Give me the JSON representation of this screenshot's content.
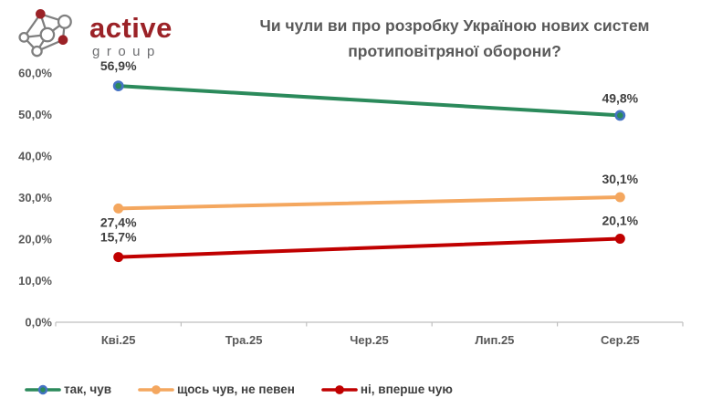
{
  "logo": {
    "brand": "active",
    "sub": "group",
    "icon": "network-icon",
    "brand_color": "#9B2227",
    "sub_color": "#6D6E71"
  },
  "title": {
    "line1": "Чи чули ви про розробку Україною нових систем",
    "line2": "протиповітряної оборони?"
  },
  "chart_data": {
    "type": "line",
    "title": "Чи чули ви про розробку Україною нових систем протиповітряної оборони?",
    "categories": [
      "Кві.25",
      "Тра.25",
      "Чер.25",
      "Лип.25",
      "Сер.25"
    ],
    "series": [
      {
        "name": "так, чув",
        "color": "#2B8A5B",
        "marker_stroke": "#4472C4",
        "values": [
          56.9,
          null,
          null,
          null,
          49.8
        ],
        "labels": [
          "56,9%",
          null,
          null,
          null,
          "49,8%"
        ]
      },
      {
        "name": "щось чув, не певен",
        "color": "#F4A75F",
        "marker_stroke": "#F4A75F",
        "values": [
          27.4,
          null,
          null,
          null,
          30.1
        ],
        "labels": [
          "27,4%",
          null,
          null,
          null,
          "30,1%"
        ]
      },
      {
        "name": "ні, вперше чую",
        "color": "#C00000",
        "marker_stroke": "#C00000",
        "values": [
          15.7,
          null,
          null,
          null,
          20.1
        ],
        "labels": [
          "15,7%",
          null,
          null,
          null,
          "20,1%"
        ]
      }
    ],
    "y_ticks": [
      "0,0%",
      "10,0%",
      "20,0%",
      "30,0%",
      "40,0%",
      "50,0%",
      "60,0%"
    ],
    "ylim": [
      0,
      60
    ],
    "y_step": 10,
    "xlabel": "",
    "ylabel": "",
    "grid": false,
    "legend_position": "bottom-left",
    "decimal_separator": ","
  },
  "colors": {
    "axis_gray": "#BFBFBF",
    "axis_text": "#595959",
    "data_label_text": "#404040",
    "marker_blue": "#4472C4",
    "background": "#FFFFFF"
  }
}
